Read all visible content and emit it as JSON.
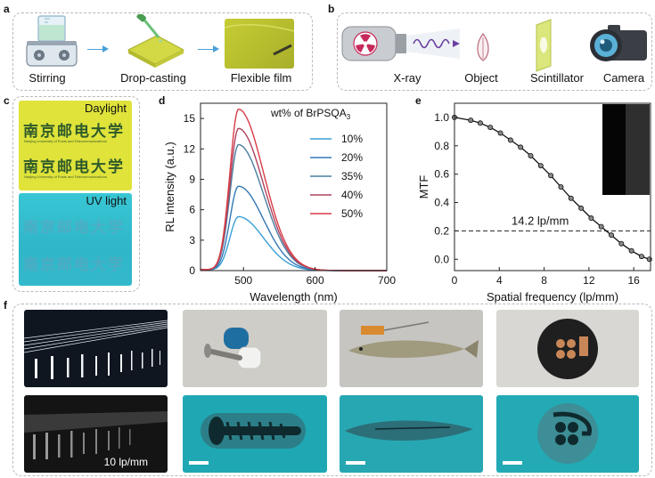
{
  "panels": {
    "a": {
      "letter": "a",
      "steps": [
        "Stirring",
        "Drop-casting",
        "Flexible film"
      ]
    },
    "b": {
      "letter": "b",
      "labels": [
        "X-ray",
        "Object",
        "Scintillator",
        "Camera"
      ]
    },
    "c": {
      "letter": "c",
      "daylight": "Daylight",
      "uv": "UV light",
      "chinese_text": "南京邮电大学",
      "english_text": "Nanjing University of Posts and Telecommunications"
    },
    "d": {
      "letter": "d"
    },
    "e": {
      "letter": "e",
      "annotation": "14.2 lp/mm"
    },
    "f": {
      "letter": "f",
      "xray_label": "10 lp/mm"
    }
  },
  "chart_data": [
    {
      "type": "line",
      "panel": "d",
      "title": "",
      "xlabel": "Wavelength (nm)",
      "ylabel": "RL intensity (a.u.)",
      "xlim": [
        440,
        700
      ],
      "ylim": [
        0,
        16.5
      ],
      "xticks": [
        500,
        600,
        700
      ],
      "yticks": [
        0,
        3,
        6,
        9,
        12,
        15
      ],
      "legend_title_parts": {
        "main": "wt% of BrPSQA",
        "sub": "3"
      },
      "legend_placement": "right",
      "peak_nm": 493,
      "series": [
        {
          "name": "10%",
          "color": "#3a9fd6",
          "peak": 5.3
        },
        {
          "name": "20%",
          "color": "#3478b6",
          "peak": 8.3
        },
        {
          "name": "35%",
          "color": "#4a7fa0",
          "peak": 12.4
        },
        {
          "name": "40%",
          "color": "#b0425d",
          "peak": 14.0
        },
        {
          "name": "50%",
          "color": "#d93c46",
          "peak": 15.9
        }
      ]
    },
    {
      "type": "line",
      "panel": "e",
      "title": "",
      "xlabel": "Spatial frequency (lp/mm)",
      "ylabel": "MTF",
      "xlim": [
        0,
        17.5
      ],
      "ylim": [
        -0.08,
        1.1
      ],
      "xticks": [
        0,
        4,
        8,
        12,
        16
      ],
      "yticks": [
        0.0,
        0.2,
        0.4,
        0.6,
        0.8,
        1.0
      ],
      "reference_line_y": 0.2,
      "x": [
        0,
        1.45,
        2.3,
        3.2,
        4.1,
        5.0,
        5.9,
        6.8,
        7.7,
        8.6,
        9.5,
        10.4,
        11.3,
        12.2,
        13.1,
        14.0,
        14.9,
        15.8,
        16.7,
        17.4
      ],
      "y": [
        1.0,
        0.98,
        0.96,
        0.93,
        0.89,
        0.84,
        0.79,
        0.73,
        0.66,
        0.59,
        0.51,
        0.43,
        0.36,
        0.29,
        0.23,
        0.17,
        0.11,
        0.06,
        0.02,
        0.0
      ],
      "series": [
        {
          "values": [
            1.0,
            0.98,
            0.96,
            0.93,
            0.89,
            0.84,
            0.79,
            0.73,
            0.66,
            0.59,
            0.51,
            0.43,
            0.36,
            0.29,
            0.23,
            0.17,
            0.11,
            0.06,
            0.02,
            0.0
          ]
        }
      ]
    }
  ]
}
